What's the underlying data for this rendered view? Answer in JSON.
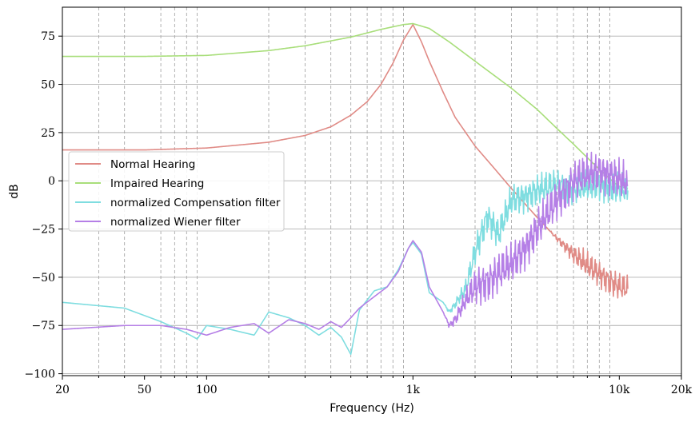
{
  "chart_data": {
    "type": "line",
    "xlabel": "Frequency (Hz)",
    "ylabel": "dB",
    "xscale": "log",
    "xlim": [
      20,
      20000
    ],
    "ylim": [
      -101,
      90
    ],
    "x_ticks": [
      20,
      50,
      100,
      1000,
      10000,
      20000
    ],
    "x_tick_labels": [
      "20",
      "50",
      "100",
      "1k",
      "10k",
      "20k"
    ],
    "y_ticks": [
      75,
      50,
      25,
      0,
      -25,
      -50,
      -75,
      -100
    ],
    "y_tick_labels": [
      "75",
      "50",
      "25",
      "0",
      "−25",
      "−50",
      "−75",
      "−100"
    ],
    "grid": {
      "major_y": true,
      "minor_x": "dashed"
    },
    "legend_position": "center-left",
    "series": [
      {
        "name": "Normal Hearing",
        "color": "#e08b86",
        "x": [
          20,
          50,
          100,
          200,
          300,
          400,
          500,
          600,
          700,
          800,
          900,
          1000,
          1100,
          1200,
          1400,
          1600,
          2000,
          2500,
          3000,
          4000,
          5000,
          6000,
          7000,
          8000,
          9000,
          10000,
          11000
        ],
        "y": [
          16,
          16,
          17,
          20,
          23.5,
          28,
          34,
          41,
          50,
          61,
          73,
          81,
          72,
          62,
          46,
          33,
          18,
          6,
          -4,
          -19,
          -30,
          -38,
          -44,
          -48,
          -52,
          -55,
          -56
        ],
        "noise": {
          "from": 4500,
          "to": 11000,
          "amplitude_db": 6
        }
      },
      {
        "name": "Impaired Hearing",
        "color": "#a8de7a",
        "x": [
          20,
          50,
          100,
          200,
          300,
          500,
          700,
          900,
          1000,
          1200,
          1500,
          2000,
          3000,
          4000,
          5000,
          6000,
          7000,
          8000,
          9000,
          10000,
          11000
        ],
        "y": [
          64.5,
          64.5,
          65,
          67.5,
          70,
          74.5,
          78.5,
          81,
          81.5,
          79,
          72,
          62,
          48,
          37,
          27,
          19,
          12,
          6,
          1,
          -3,
          -4
        ]
      },
      {
        "name": "normalized Compensation filter",
        "color": "#7fdde0",
        "x": [
          20,
          40,
          60,
          80,
          90,
          100,
          130,
          170,
          200,
          250,
          300,
          350,
          400,
          450,
          500,
          550,
          650,
          750,
          850,
          950,
          1000,
          1100,
          1200,
          1400,
          1500,
          1600,
          1800,
          2000,
          2300,
          2600,
          3000,
          3500,
          4000,
          5000,
          6000,
          7000,
          8000,
          9000,
          10000,
          11000
        ],
        "y": [
          -63,
          -66,
          -73,
          -79,
          -82,
          -75,
          -77,
          -80,
          -68,
          -71,
          -75,
          -80,
          -76,
          -81,
          -90,
          -67,
          -57,
          -55,
          -46,
          -35,
          -32,
          -38,
          -58,
          -63,
          -68,
          -64,
          -56,
          -37,
          -18,
          -28,
          -10,
          -8,
          -5,
          -2,
          -4,
          -3,
          -2,
          -3,
          -4,
          -5
        ],
        "noise": {
          "from": 1400,
          "to": 11000,
          "amplitude_db": 7
        }
      },
      {
        "name": "normalized Wiener filter",
        "color": "#b57fe6",
        "x": [
          20,
          40,
          60,
          80,
          100,
          130,
          170,
          200,
          250,
          300,
          350,
          400,
          450,
          500,
          550,
          650,
          750,
          850,
          950,
          1000,
          1100,
          1200,
          1400,
          1500,
          1600,
          1800,
          2000,
          2300,
          2600,
          3000,
          3500,
          4000,
          5000,
          6000,
          7000,
          8000,
          9000,
          10000,
          11000
        ],
        "y": [
          -77,
          -75,
          -75,
          -77,
          -80,
          -76,
          -74,
          -79,
          -72,
          -74,
          -77,
          -73,
          -76,
          -71,
          -66,
          -60,
          -55,
          -47,
          -35,
          -31,
          -37,
          -55,
          -68,
          -75,
          -72,
          -62,
          -55,
          -52,
          -48,
          -43,
          -35,
          -25,
          -10,
          0,
          3,
          5,
          3,
          1,
          -2
        ],
        "noise": {
          "from": 1400,
          "to": 11000,
          "amplitude_db": 9
        }
      }
    ]
  }
}
